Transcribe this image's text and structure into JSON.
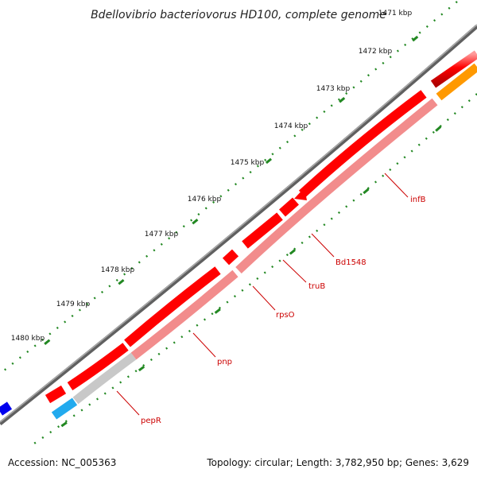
{
  "title": "Bdellovibrio bacteriovorus HD100, complete genome",
  "scale_labels": [
    "1471 kbp",
    "1472 kbp",
    "1473 kbp",
    "1474 kbp",
    "1475 kbp",
    "1476 kbp",
    "1477 kbp",
    "1478 kbp",
    "1479 kbp",
    "1480 kbp"
  ],
  "genes": {
    "infB": "infB",
    "Bd1548": "Bd1548",
    "truB": "truB",
    "rpsO": "rpsO",
    "pnp": "pnp",
    "pepR": "pepR"
  },
  "footer": {
    "accession": "Accession: NC_005363",
    "summary": "Topology: circular; Length: 3,782,950 bp; Genes: 3,629"
  },
  "colors": {
    "backbone": "#808080",
    "cds_forward": "#ff0000",
    "cds_track": "#f28c8c",
    "cds_track_grey": "#c8c8c8",
    "cyan_feature": "#22aaee",
    "blue_feature": "#0000ee",
    "orange_feature": "#ff9900",
    "tick": "#228822",
    "label_line": "#cc0000"
  }
}
